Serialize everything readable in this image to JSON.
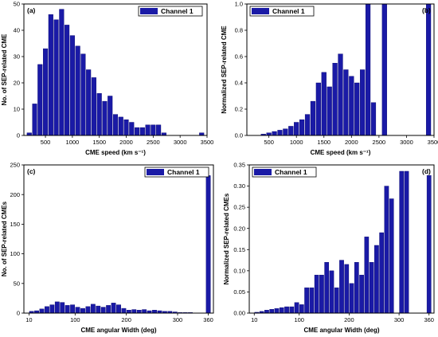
{
  "colors": {
    "bar": "#1a1aa6"
  },
  "chart_data": [
    {
      "type": "bar",
      "panel_label": "(a)",
      "legend": "Channel 1",
      "legend_position": "top-right",
      "xlabel": "CME speed (km s⁻¹)",
      "ylabel": "No. of SEP-related CME",
      "xlim": [
        100,
        3500
      ],
      "ylim": [
        0,
        50
      ],
      "xticks": [
        500,
        1000,
        1500,
        2000,
        2500,
        3000,
        3500
      ],
      "yticks": [
        0,
        10,
        20,
        30,
        40,
        50
      ],
      "bin_width": 100,
      "bin_centers": [
        200,
        300,
        400,
        500,
        600,
        700,
        800,
        900,
        1000,
        1100,
        1200,
        1300,
        1400,
        1500,
        1600,
        1700,
        1800,
        1900,
        2000,
        2100,
        2200,
        2300,
        2400,
        2500,
        2600,
        2700,
        2800,
        2900,
        3000,
        3100,
        3200,
        3300,
        3400
      ],
      "values": [
        1,
        12,
        27,
        33,
        46,
        44,
        48,
        42,
        38,
        34,
        31,
        25,
        22,
        16,
        13,
        15,
        8,
        7,
        6,
        5,
        3,
        3,
        4,
        4,
        4,
        1,
        0,
        0,
        0,
        0,
        0,
        0,
        1
      ]
    },
    {
      "type": "bar",
      "panel_label": "(b)",
      "legend": "Channel 1",
      "legend_position": "top-left",
      "xlabel": "CME speed (km s⁻¹)",
      "ylabel": "Normalized SEP-related CME",
      "xlim": [
        100,
        3500
      ],
      "ylim": [
        0,
        1.0
      ],
      "xticks": [
        500,
        1000,
        1500,
        2000,
        2500,
        3000,
        3500
      ],
      "yticks": [
        0.0,
        0.2,
        0.4,
        0.6,
        0.8,
        1.0
      ],
      "bin_width": 100,
      "bin_centers": [
        200,
        300,
        400,
        500,
        600,
        700,
        800,
        900,
        1000,
        1100,
        1200,
        1300,
        1400,
        1500,
        1600,
        1700,
        1800,
        1900,
        2000,
        2100,
        2200,
        2300,
        2400,
        2500,
        2600,
        2700,
        2800,
        2900,
        3000,
        3100,
        3200,
        3300,
        3400
      ],
      "values": [
        0.0,
        0.0,
        0.01,
        0.02,
        0.03,
        0.04,
        0.05,
        0.07,
        0.1,
        0.12,
        0.16,
        0.26,
        0.4,
        0.48,
        0.37,
        0.55,
        0.62,
        0.5,
        0.45,
        0.4,
        0.5,
        1.0,
        0.25,
        0.0,
        1.0,
        0.0,
        0.0,
        0.0,
        0.0,
        0.0,
        0.0,
        0.0,
        1.0
      ]
    },
    {
      "type": "bar",
      "panel_label": "(c)",
      "legend": "Channel 1",
      "legend_position": "top-right",
      "xlabel": "CME angular Width (deg)",
      "ylabel": "No. of SEP-related CMEs",
      "xlim": [
        0,
        370
      ],
      "ylim": [
        0,
        250
      ],
      "xticks": [
        10,
        100,
        200,
        300,
        360
      ],
      "yticks": [
        0,
        50,
        100,
        150,
        200,
        250
      ],
      "bin_width": 10,
      "bin_centers": [
        15,
        25,
        35,
        45,
        55,
        65,
        75,
        85,
        95,
        105,
        115,
        125,
        135,
        145,
        155,
        165,
        175,
        185,
        195,
        205,
        215,
        225,
        235,
        245,
        255,
        265,
        275,
        285,
        295,
        305,
        315,
        325,
        335,
        345,
        360
      ],
      "values": [
        3,
        4,
        7,
        11,
        14,
        19,
        18,
        13,
        14,
        10,
        8,
        11,
        15,
        12,
        10,
        13,
        17,
        14,
        8,
        5,
        6,
        5,
        6,
        4,
        5,
        4,
        3,
        3,
        2,
        1,
        1,
        1,
        0,
        0,
        232
      ]
    },
    {
      "type": "bar",
      "panel_label": "(d)",
      "legend": "Channel 1",
      "legend_position": "top-left",
      "xlabel": "CME angular Width (deg)",
      "ylabel": "Normalized SEP-related CMEs",
      "xlim": [
        0,
        370
      ],
      "ylim": [
        0,
        0.35
      ],
      "xticks": [
        10,
        100,
        200,
        300,
        360
      ],
      "yticks": [
        0.0,
        0.05,
        0.1,
        0.15,
        0.2,
        0.25,
        0.3,
        0.35
      ],
      "bin_width": 10,
      "bin_centers": [
        15,
        25,
        35,
        45,
        55,
        65,
        75,
        85,
        95,
        105,
        115,
        125,
        135,
        145,
        155,
        165,
        175,
        185,
        195,
        205,
        215,
        225,
        235,
        245,
        255,
        265,
        275,
        285,
        295,
        305,
        315,
        325,
        335,
        345,
        360
      ],
      "values": [
        0.002,
        0.004,
        0.007,
        0.009,
        0.011,
        0.013,
        0.015,
        0.015,
        0.025,
        0.02,
        0.06,
        0.06,
        0.09,
        0.09,
        0.12,
        0.1,
        0.06,
        0.125,
        0.115,
        0.07,
        0.12,
        0.09,
        0.18,
        0.12,
        0.16,
        0.19,
        0.3,
        0.27,
        0.0,
        0.335,
        0.335,
        0.0,
        0.0,
        0.0,
        0.325
      ]
    }
  ]
}
